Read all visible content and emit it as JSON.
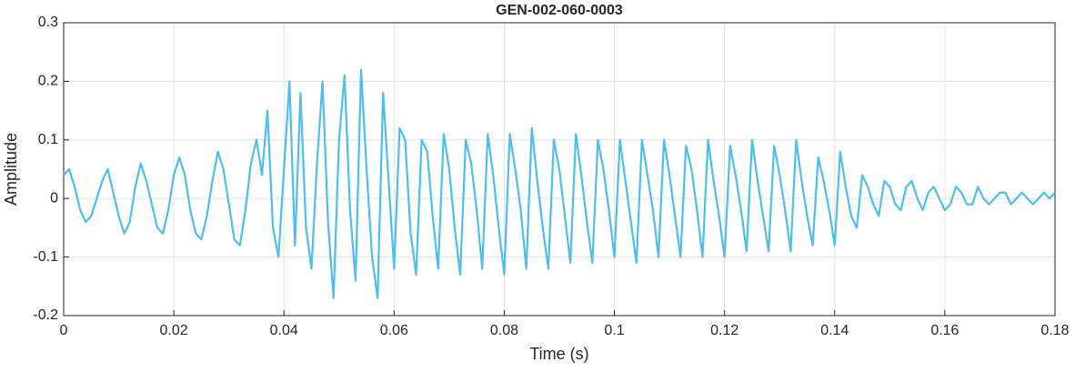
{
  "chart_data": {
    "type": "line",
    "title": "GEN-002-060-0003",
    "x_label": "Time (s)",
    "y_label": "Amplitude",
    "x": [
      0,
      0.001,
      0.002,
      0.003,
      0.004,
      0.005,
      0.006,
      0.007,
      0.008,
      0.009,
      0.01,
      0.011,
      0.012,
      0.013,
      0.014,
      0.015,
      0.016,
      0.017,
      0.018,
      0.019,
      0.02,
      0.021,
      0.022,
      0.023,
      0.024,
      0.025,
      0.026,
      0.027,
      0.028,
      0.029,
      0.03,
      0.031,
      0.032,
      0.033,
      0.034,
      0.035,
      0.036,
      0.037,
      0.038,
      0.039,
      0.04,
      0.041,
      0.042,
      0.043,
      0.044,
      0.045,
      0.046,
      0.047,
      0.048,
      0.049,
      0.05,
      0.051,
      0.052,
      0.053,
      0.054,
      0.055,
      0.056,
      0.057,
      0.058,
      0.059,
      0.06,
      0.061,
      0.062,
      0.063,
      0.064,
      0.065,
      0.066,
      0.067,
      0.068,
      0.069,
      0.07,
      0.071,
      0.072,
      0.073,
      0.074,
      0.075,
      0.076,
      0.077,
      0.078,
      0.079,
      0.08,
      0.081,
      0.082,
      0.083,
      0.084,
      0.085,
      0.086,
      0.087,
      0.088,
      0.089,
      0.09,
      0.091,
      0.092,
      0.093,
      0.094,
      0.095,
      0.096,
      0.097,
      0.098,
      0.099,
      0.1,
      0.101,
      0.102,
      0.103,
      0.104,
      0.105,
      0.106,
      0.107,
      0.108,
      0.109,
      0.11,
      0.111,
      0.112,
      0.113,
      0.114,
      0.115,
      0.116,
      0.117,
      0.118,
      0.119,
      0.12,
      0.121,
      0.122,
      0.123,
      0.124,
      0.125,
      0.126,
      0.127,
      0.128,
      0.129,
      0.13,
      0.131,
      0.132,
      0.133,
      0.134,
      0.135,
      0.136,
      0.137,
      0.138,
      0.139,
      0.14,
      0.141,
      0.142,
      0.143,
      0.144,
      0.145,
      0.146,
      0.147,
      0.148,
      0.149,
      0.15,
      0.151,
      0.152,
      0.153,
      0.154,
      0.155,
      0.156,
      0.157,
      0.158,
      0.159,
      0.16,
      0.161,
      0.162,
      0.163,
      0.164,
      0.165,
      0.166,
      0.167,
      0.168,
      0.169,
      0.17,
      0.171,
      0.172,
      0.173,
      0.174,
      0.175,
      0.176,
      0.177,
      0.178,
      0.179,
      0.18
    ],
    "series": [
      {
        "color": "#4dbeee",
        "values": [
          0.04,
          0.05,
          0.02,
          -0.02,
          -0.04,
          -0.03,
          0.0,
          0.03,
          0.05,
          0.01,
          -0.03,
          -0.06,
          -0.04,
          0.02,
          0.06,
          0.03,
          -0.01,
          -0.05,
          -0.06,
          -0.02,
          0.04,
          0.07,
          0.04,
          -0.02,
          -0.06,
          -0.07,
          -0.03,
          0.03,
          0.08,
          0.05,
          -0.01,
          -0.07,
          -0.08,
          -0.02,
          0.06,
          0.1,
          0.04,
          0.15,
          -0.05,
          -0.1,
          0.05,
          0.2,
          -0.08,
          0.18,
          -0.05,
          -0.12,
          0.06,
          0.2,
          -0.04,
          -0.17,
          0.1,
          0.21,
          -0.02,
          -0.14,
          0.22,
          0.05,
          -0.1,
          -0.17,
          0.18,
          0.03,
          -0.12,
          0.12,
          0.1,
          -0.06,
          -0.13,
          0.1,
          0.08,
          -0.03,
          -0.12,
          0.11,
          0.05,
          -0.05,
          -0.13,
          0.1,
          0.06,
          -0.02,
          -0.12,
          0.11,
          0.04,
          -0.05,
          -0.13,
          0.11,
          0.05,
          -0.02,
          -0.12,
          0.12,
          0.03,
          -0.05,
          -0.12,
          0.1,
          0.05,
          -0.03,
          -0.11,
          0.11,
          0.04,
          -0.04,
          -0.11,
          0.1,
          0.05,
          -0.02,
          -0.1,
          0.1,
          0.03,
          -0.04,
          -0.11,
          0.1,
          0.04,
          -0.02,
          -0.1,
          0.1,
          0.04,
          -0.03,
          -0.1,
          0.09,
          0.05,
          -0.02,
          -0.1,
          0.1,
          0.03,
          -0.03,
          -0.1,
          0.09,
          0.04,
          -0.02,
          -0.09,
          0.1,
          0.03,
          -0.03,
          -0.09,
          0.09,
          0.04,
          -0.02,
          -0.09,
          0.1,
          0.03,
          -0.03,
          -0.08,
          0.07,
          0.03,
          -0.02,
          -0.08,
          0.08,
          0.02,
          -0.03,
          -0.05,
          0.04,
          0.02,
          -0.01,
          -0.03,
          0.03,
          0.02,
          -0.01,
          -0.02,
          0.02,
          0.03,
          0.0,
          -0.02,
          0.01,
          0.02,
          0.0,
          -0.02,
          -0.01,
          0.02,
          0.01,
          -0.01,
          -0.01,
          0.02,
          0.0,
          -0.01,
          0.0,
          0.01,
          0.01,
          -0.01,
          0.0,
          0.01,
          0.0,
          -0.01,
          0.0,
          0.01,
          0.0,
          0.01
        ]
      }
    ],
    "xlim": [
      0,
      0.18
    ],
    "xticks": [
      0,
      0.02,
      0.04,
      0.06,
      0.08,
      0.1,
      0.12,
      0.14,
      0.16,
      0.18
    ],
    "ylim": [
      -0.2,
      0.3
    ],
    "yticks": [
      -0.2,
      -0.1,
      0,
      0.1,
      0.2,
      0.3
    ],
    "grid": true
  }
}
